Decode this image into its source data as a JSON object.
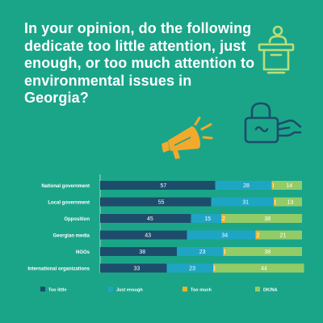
{
  "title": "In your opinion, do the following dedicate too little attention, just enough, or too much attention to environmental issues in Georgia?",
  "colors": {
    "background": "#1aa589",
    "too_little": "#1d4d6a",
    "just_enough": "#1fa5c4",
    "too_much": "#e8b52a",
    "dk_na": "#93cc67",
    "icon_green": "#b7df7a",
    "icon_navy": "#1d4d6a",
    "megaphone": "#f3a92b"
  },
  "icons": [
    "podium-icon",
    "padlock-hand-icon",
    "megaphone-icon"
  ],
  "chart_data": {
    "type": "bar",
    "orientation": "horizontal",
    "stacked": true,
    "categories": [
      "National government",
      "Local government",
      "Opposition",
      "Georgian media",
      "NGOs",
      "International organizations"
    ],
    "series": [
      {
        "name": "Too little",
        "color": "#1d4d6a",
        "values": [
          57,
          55,
          45,
          43,
          38,
          33
        ]
      },
      {
        "name": "Just enough",
        "color": "#1fa5c4",
        "values": [
          28,
          31,
          15,
          34,
          23,
          23
        ]
      },
      {
        "name": "Too much",
        "color": "#e8b52a",
        "values": [
          1,
          1,
          2,
          2,
          1,
          1
        ]
      },
      {
        "name": "DK/NA",
        "color": "#93cc67",
        "values": [
          14,
          13,
          38,
          21,
          38,
          44
        ]
      }
    ],
    "data_labels": true,
    "legend": "bottom",
    "grid": false,
    "xlim": [
      0,
      100
    ]
  }
}
